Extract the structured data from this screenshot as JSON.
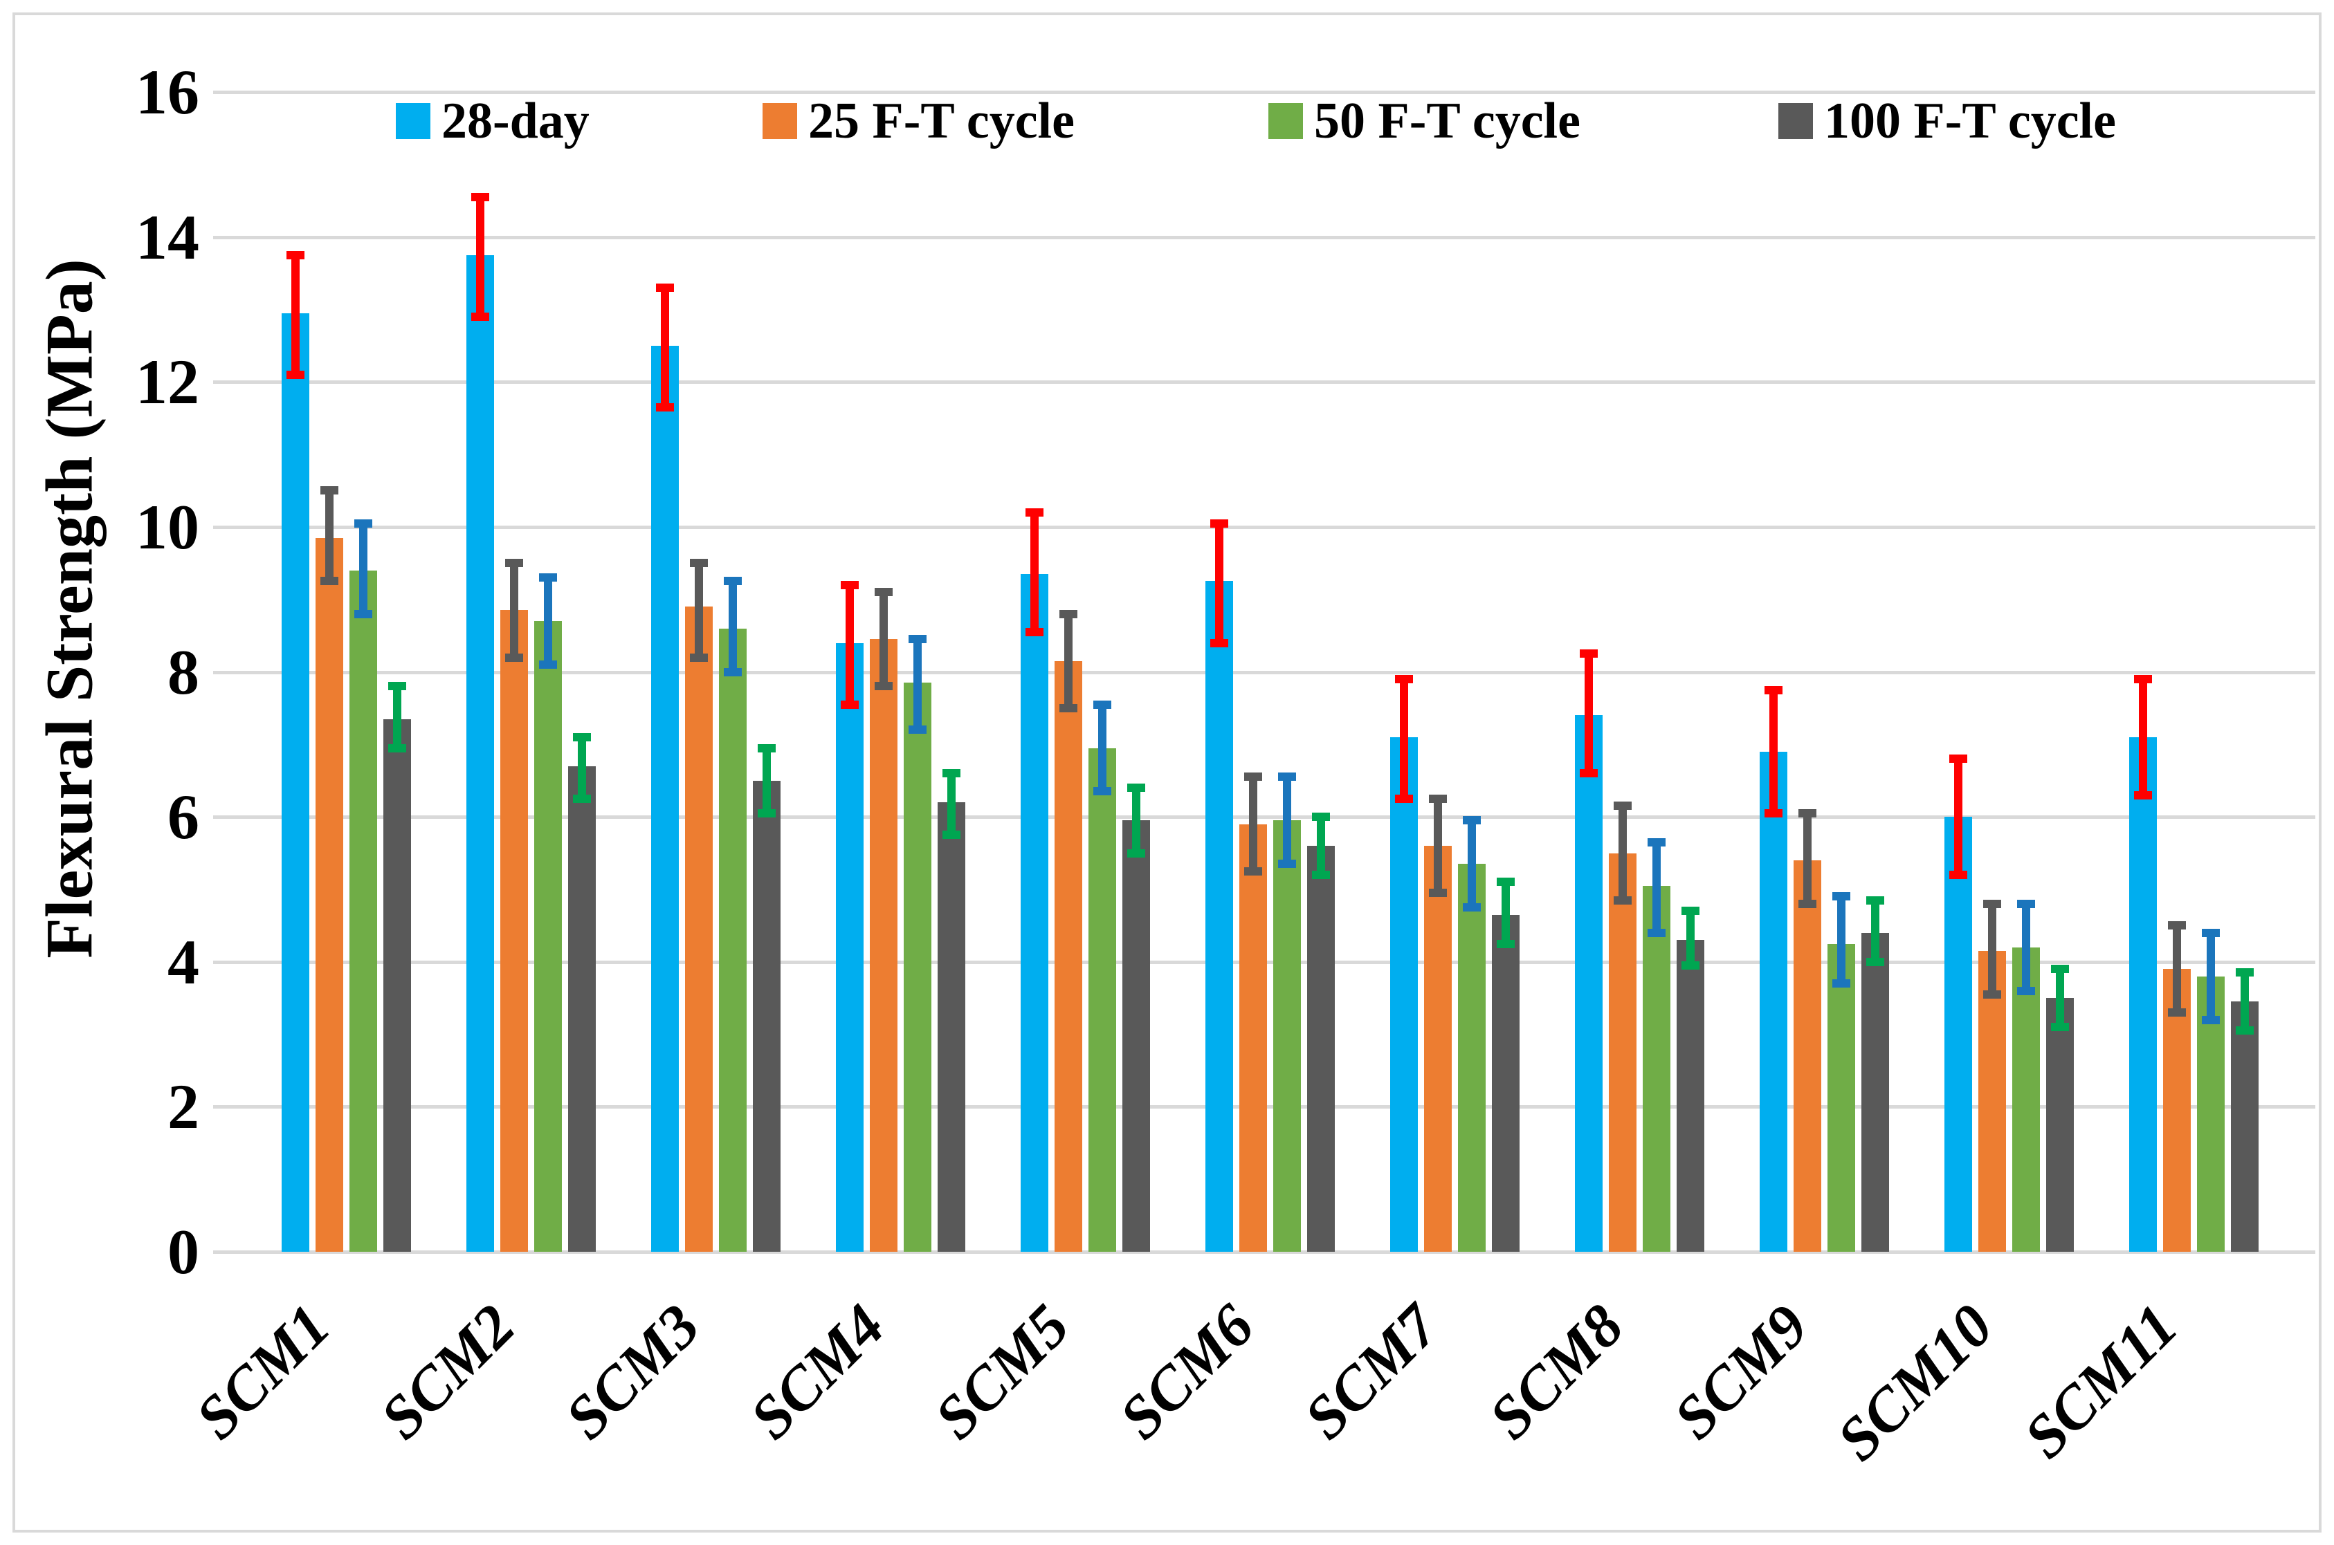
{
  "figure": {
    "background": "#FFFFFF",
    "frame_color": "#D9D9D9",
    "gridline_color": "#D9D9D9"
  },
  "legend": {
    "position": "top",
    "items": [
      {
        "label": "28-day",
        "color": "#00AEEF",
        "error_color": "#FF0000"
      },
      {
        "label": "25 F-T cycle",
        "color": "#ED7D31",
        "error_color": "#595959"
      },
      {
        "label": "50 F-T cycle",
        "color": "#70AD47",
        "error_color": "#1B75BC"
      },
      {
        "label": "100 F-T cycle",
        "color": "#595959",
        "error_color": "#00A651"
      }
    ]
  },
  "chart_data": {
    "type": "bar",
    "title": "",
    "xlabel": "",
    "ylabel": "Flexural Strength (MPa)",
    "ylim": [
      0,
      16
    ],
    "yticks": [
      0,
      2,
      4,
      6,
      8,
      10,
      12,
      14,
      16
    ],
    "ytick_labels": [
      "0",
      "2",
      "4",
      "6",
      "8",
      "10",
      "12",
      "14",
      "16"
    ],
    "grid": "horizontal",
    "legend_position": "top",
    "error_bars": true,
    "categories": [
      "SCM1",
      "SCM2",
      "SCM3",
      "SCM4",
      "SCM5",
      "SCM6",
      "SCM7",
      "SCM8",
      "SCM9",
      "SCM10",
      "SCM11"
    ],
    "series": [
      {
        "name": "28-day",
        "color": "#00AEEF",
        "error_color": "#FF0000",
        "values": [
          12.95,
          13.75,
          12.5,
          8.4,
          9.35,
          9.25,
          7.1,
          7.4,
          6.9,
          6.0,
          7.1
        ],
        "error_low": [
          12.1,
          12.9,
          11.65,
          7.55,
          8.55,
          8.4,
          6.25,
          6.6,
          6.05,
          5.2,
          6.3
        ],
        "error_high": [
          13.75,
          14.55,
          13.3,
          9.2,
          10.2,
          10.05,
          7.9,
          8.25,
          7.75,
          6.8,
          7.9
        ]
      },
      {
        "name": "25 F-T cycle",
        "color": "#ED7D31",
        "error_color": "#595959",
        "values": [
          9.85,
          8.85,
          8.9,
          8.45,
          8.15,
          5.9,
          5.6,
          5.5,
          5.4,
          4.15,
          3.9
        ],
        "error_low": [
          9.25,
          8.2,
          8.2,
          7.8,
          7.5,
          5.25,
          4.95,
          4.85,
          4.8,
          3.55,
          3.3
        ],
        "error_high": [
          10.5,
          9.5,
          9.5,
          9.1,
          8.8,
          6.55,
          6.25,
          6.15,
          6.05,
          4.8,
          4.5
        ]
      },
      {
        "name": "50 F-T cycle",
        "color": "#70AD47",
        "error_color": "#1B75BC",
        "values": [
          9.4,
          8.7,
          8.6,
          7.85,
          6.95,
          5.95,
          5.35,
          5.05,
          4.25,
          4.2,
          3.8
        ],
        "error_low": [
          8.8,
          8.1,
          8.0,
          7.2,
          6.35,
          5.35,
          4.75,
          4.4,
          3.7,
          3.6,
          3.2
        ],
        "error_high": [
          10.05,
          9.3,
          9.25,
          8.45,
          7.55,
          6.55,
          5.95,
          5.65,
          4.9,
          4.8,
          4.4
        ]
      },
      {
        "name": "100 F-T cycle",
        "color": "#595959",
        "error_color": "#00A651",
        "values": [
          7.35,
          6.7,
          6.5,
          6.2,
          5.95,
          5.6,
          4.65,
          4.3,
          4.4,
          3.5,
          3.45
        ],
        "error_low": [
          6.95,
          6.25,
          6.05,
          5.75,
          5.5,
          5.2,
          4.25,
          3.95,
          4.0,
          3.1,
          3.05
        ],
        "error_high": [
          7.8,
          7.1,
          6.95,
          6.6,
          6.4,
          6.0,
          5.1,
          4.7,
          4.85,
          3.9,
          3.85
        ]
      }
    ]
  }
}
